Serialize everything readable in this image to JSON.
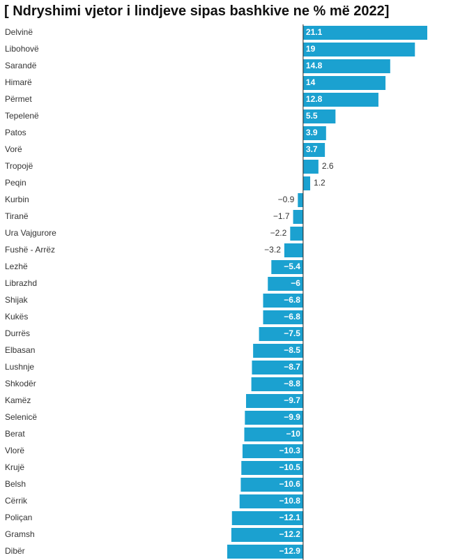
{
  "chart_data": {
    "type": "bar",
    "orientation": "horizontal",
    "title": "[ Ndryshimi vjetor i lindjeve sipas bashkive ne % më 2022]",
    "categories": [
      "Delvinë",
      "Libohovë",
      "Sarandë",
      "Himarë",
      "Përmet",
      "Tepelenë",
      "Patos",
      "Vorë",
      "Tropojë",
      "Peqin",
      "Kurbin",
      "Tiranë",
      "Ura Vajgurore",
      "Fushë - Arrëz",
      "Lezhë",
      "Librazhd",
      "Shijak",
      "Kukës",
      "Durrës",
      "Elbasan",
      "Lushnje",
      "Shkodër",
      "Kamëz",
      "Selenicë",
      "Berat",
      "Vlorë",
      "Krujë",
      "Belsh",
      "Cërrik",
      "Poliçan",
      "Gramsh",
      "Dibër"
    ],
    "values": [
      21.1,
      19,
      14.8,
      14,
      12.8,
      5.5,
      3.9,
      3.7,
      2.6,
      1.2,
      -0.9,
      -1.7,
      -2.2,
      -3.2,
      -5.4,
      -6,
      -6.8,
      -6.8,
      -7.5,
      -8.5,
      -8.7,
      -8.8,
      -9.7,
      -9.9,
      -10,
      -10.3,
      -10.5,
      -10.6,
      -10.8,
      -12.1,
      -12.2,
      -12.9
    ],
    "value_labels": [
      "21.1",
      "19",
      "14.8",
      "14",
      "12.8",
      "5.5",
      "3.9",
      "3.7",
      "2.6",
      "1.2",
      "−0.9",
      "−1.7",
      "−2.2",
      "−3.2",
      "−5.4",
      "−6",
      "−6.8",
      "−6.8",
      "−7.5",
      "−8.5",
      "−8.7",
      "−8.8",
      "−9.7",
      "−9.9",
      "−10",
      "−10.3",
      "−10.5",
      "−10.6",
      "−10.8",
      "−12.1",
      "−12.2",
      "−12.9"
    ],
    "color": "#1ba1d0"
  }
}
